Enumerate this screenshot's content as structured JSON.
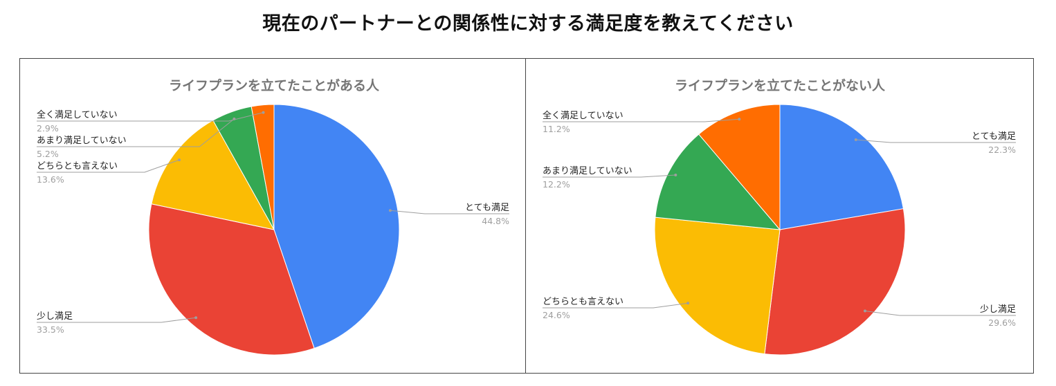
{
  "page_title": "現在のパートナーとの関係性に対する満足度を教えてください",
  "colors": {
    "とても満足": "#4285f4",
    "少し満足": "#ea4335",
    "どちらとも言えない": "#fbbc04",
    "あまり満足していない": "#34a853",
    "全く満足していない": "#ff6d01"
  },
  "chart_data": [
    {
      "type": "pie",
      "title": "ライフプランを立てたことがある人",
      "categories": [
        "とても満足",
        "少し満足",
        "どちらとも言えない",
        "あまり満足していない",
        "全く満足していない"
      ],
      "values": [
        44.8,
        33.5,
        13.6,
        5.2,
        2.9
      ],
      "value_labels": [
        "44.8%",
        "33.5%",
        "13.6%",
        "5.2%",
        "2.9%"
      ],
      "legend": "none"
    },
    {
      "type": "pie",
      "title": "ライフプランを立てたことがない人",
      "categories": [
        "とても満足",
        "少し満足",
        "どちらとも言えない",
        "あまり満足していない",
        "全く満足していない"
      ],
      "values": [
        22.3,
        29.6,
        24.6,
        12.2,
        11.2
      ],
      "value_labels": [
        "22.3%",
        "29.6%",
        "24.6%",
        "12.2%",
        "11.2%"
      ],
      "legend": "none"
    }
  ]
}
